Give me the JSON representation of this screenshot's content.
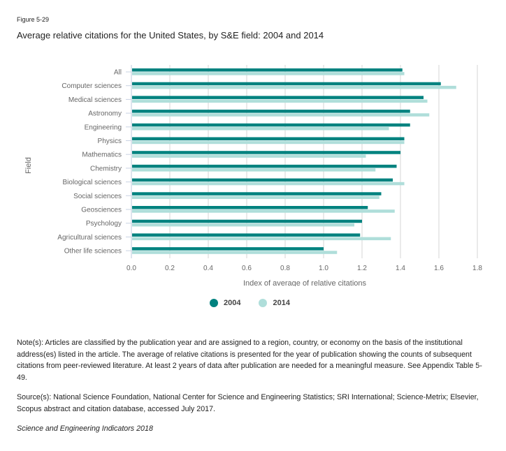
{
  "figure_label": "Figure 5-29",
  "title": "Average relative citations for the United States, by S&E field: 2004 and 2014",
  "chart_data": {
    "type": "bar",
    "orientation": "horizontal",
    "title": "Average relative citations for the United States, by S&E field: 2004 and 2014",
    "xlabel": "Index of average of relative citations",
    "ylabel": "Field",
    "xlim": [
      0,
      1.8
    ],
    "xticks": [
      "0.0",
      "0.2",
      "0.4",
      "0.6",
      "0.8",
      "1.0",
      "1.2",
      "1.4",
      "1.6",
      "1.8"
    ],
    "grid": true,
    "legend_position": "bottom-center",
    "categories": [
      "All",
      "Computer sciences",
      "Medical sciences",
      "Astronomy",
      "Engineering",
      "Physics",
      "Mathematics",
      "Chemistry",
      "Biological sciences",
      "Social sciences",
      "Geosciences",
      "Psychology",
      "Agricultural sciences",
      "Other life sciences"
    ],
    "series": [
      {
        "name": "2004",
        "color": "#00827f",
        "values": [
          1.41,
          1.61,
          1.52,
          1.45,
          1.45,
          1.42,
          1.4,
          1.38,
          1.36,
          1.3,
          1.23,
          1.2,
          1.19,
          1.0
        ]
      },
      {
        "name": "2014",
        "color": "#afdeda",
        "values": [
          1.42,
          1.69,
          1.54,
          1.55,
          1.34,
          1.42,
          1.22,
          1.27,
          1.42,
          1.29,
          1.37,
          1.16,
          1.35,
          1.07
        ]
      }
    ]
  },
  "legend": [
    {
      "label": "2004",
      "color": "#00827f"
    },
    {
      "label": "2014",
      "color": "#afdeda"
    }
  ],
  "notes": "Note(s): Articles are classified by the publication year and are assigned to a region, country, or economy on the basis of the institutional address(es) listed in the article. The average of relative citations is presented for the year of publication showing the counts of subsequent citations from peer-reviewed literature. At least 2 years of data after publication are needed for a meaningful measure. See Appendix Table 5-49.",
  "source": "Source(s): National Science Foundation, National Center for Science and Engineering Statistics; SRI International; Science-Metrix; Elsevier, Scopus abstract and citation database, accessed July 2017.",
  "publication": "Science and Engineering Indicators 2018"
}
